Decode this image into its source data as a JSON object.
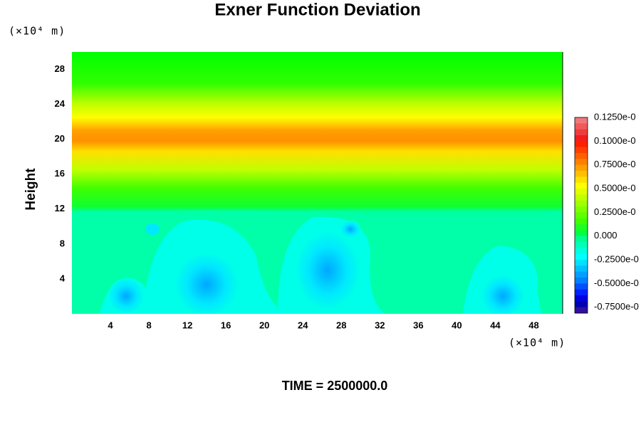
{
  "chart_data": {
    "type": "contour",
    "title": "Exner Function Deviation",
    "ylabel": "Height",
    "y_unit": "(×10⁴ m)",
    "x_unit": "(×10⁴ m)",
    "footer": "TIME = 2500000.0",
    "xlim": [
      0,
      51
    ],
    "ylim": [
      0,
      30
    ],
    "xticks": [
      4,
      8,
      12,
      16,
      20,
      24,
      28,
      32,
      36,
      40,
      44,
      48
    ],
    "yticks": [
      4,
      8,
      12,
      16,
      20,
      24,
      28
    ],
    "colorbar_labels": [
      "0.1250e-0",
      "0.1000e-0",
      "0.7500e-0",
      "0.5000e-0",
      "0.2500e-0",
      "0.000",
      "-0.2500e-0",
      "-0.5000e-0",
      "-0.7500e-0"
    ],
    "colorbar_colors": [
      "#f07878",
      "#f05a5a",
      "#f03c3c",
      "#f01e1e",
      "#ff2000",
      "#ff4000",
      "#ff6000",
      "#ff8000",
      "#ffa000",
      "#ffc000",
      "#ffe000",
      "#ffff00",
      "#e0ff00",
      "#c0ff00",
      "#a0ff00",
      "#80ff00",
      "#60ff00",
      "#40ff00",
      "#20ff20",
      "#00ff40",
      "#00ff90",
      "#00ffb8",
      "#00ffe0",
      "#00ffff",
      "#00e0ff",
      "#00c0ff",
      "#00a0ff",
      "#0080ff",
      "#0050ff",
      "#0020ff",
      "#0000e0",
      "#0000b0",
      "#3010a0"
    ]
  }
}
